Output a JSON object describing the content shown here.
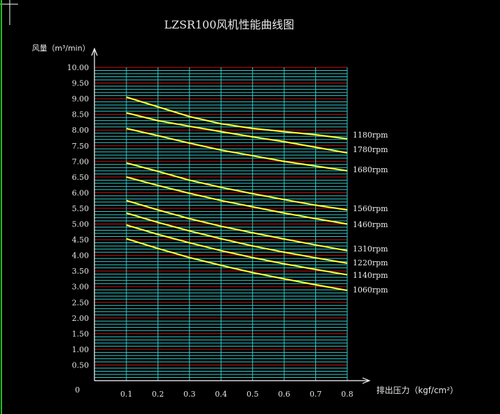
{
  "chart_data": {
    "type": "line",
    "title": "LZSR100风机性能曲线图",
    "ylabel": "风量（m³/min）",
    "xlabel": "排出压力（kgf/cm²）",
    "xlim": [
      0,
      0.8
    ],
    "ylim": [
      0,
      10
    ],
    "x_ticks": [
      "0.1",
      "0.2",
      "0.3",
      "0.4",
      "0.5",
      "0.6",
      "0.7",
      "0.8"
    ],
    "y_ticks": [
      "0",
      "0.50",
      "1.00",
      "1.50",
      "2.00",
      "2.50",
      "3.00",
      "3.50",
      "4.00",
      "4.50",
      "5.00",
      "5.50",
      "6.00",
      "6.50",
      "7.00",
      "7.50",
      "8.00",
      "8.50",
      "9.00",
      "9.50",
      "10.00"
    ],
    "origin_label": "0",
    "grid": true,
    "colors": {
      "background": "#000000",
      "grid_cyan": "#33cccc",
      "grid_red": "#cc1111",
      "axis": "#ffffff",
      "curve": "#ffff33"
    },
    "x": [
      0.1,
      0.2,
      0.3,
      0.4,
      0.5,
      0.6,
      0.7,
      0.8
    ],
    "series": [
      {
        "name": "1180rpm",
        "values": [
          9.05,
          8.74,
          8.43,
          8.2,
          8.05,
          7.95,
          7.85,
          7.72
        ]
      },
      {
        "name": "1780rpm",
        "values": [
          8.55,
          8.3,
          8.12,
          7.95,
          7.78,
          7.63,
          7.45,
          7.27
        ]
      },
      {
        "name": "1680rpm",
        "values": [
          8.05,
          7.82,
          7.58,
          7.36,
          7.18,
          7.0,
          6.85,
          6.7
        ]
      },
      {
        "name": "1560rpm",
        "values": [
          6.95,
          6.68,
          6.4,
          6.17,
          5.97,
          5.78,
          5.6,
          5.45
        ]
      },
      {
        "name": "1460rpm",
        "values": [
          6.5,
          6.23,
          5.98,
          5.75,
          5.55,
          5.35,
          5.17,
          5.0
        ]
      },
      {
        "name": "1310rpm",
        "values": [
          5.75,
          5.45,
          5.17,
          4.93,
          4.72,
          4.52,
          4.33,
          4.15
        ]
      },
      {
        "name": "1220rpm",
        "values": [
          5.35,
          5.05,
          4.78,
          4.53,
          4.3,
          4.1,
          3.92,
          3.75
        ]
      },
      {
        "name": "1140rpm",
        "values": [
          4.97,
          4.67,
          4.4,
          4.15,
          3.93,
          3.73,
          3.55,
          3.38
        ]
      },
      {
        "name": "1060rpm",
        "values": [
          4.53,
          4.22,
          3.93,
          3.68,
          3.45,
          3.25,
          3.06,
          2.88
        ]
      }
    ]
  }
}
